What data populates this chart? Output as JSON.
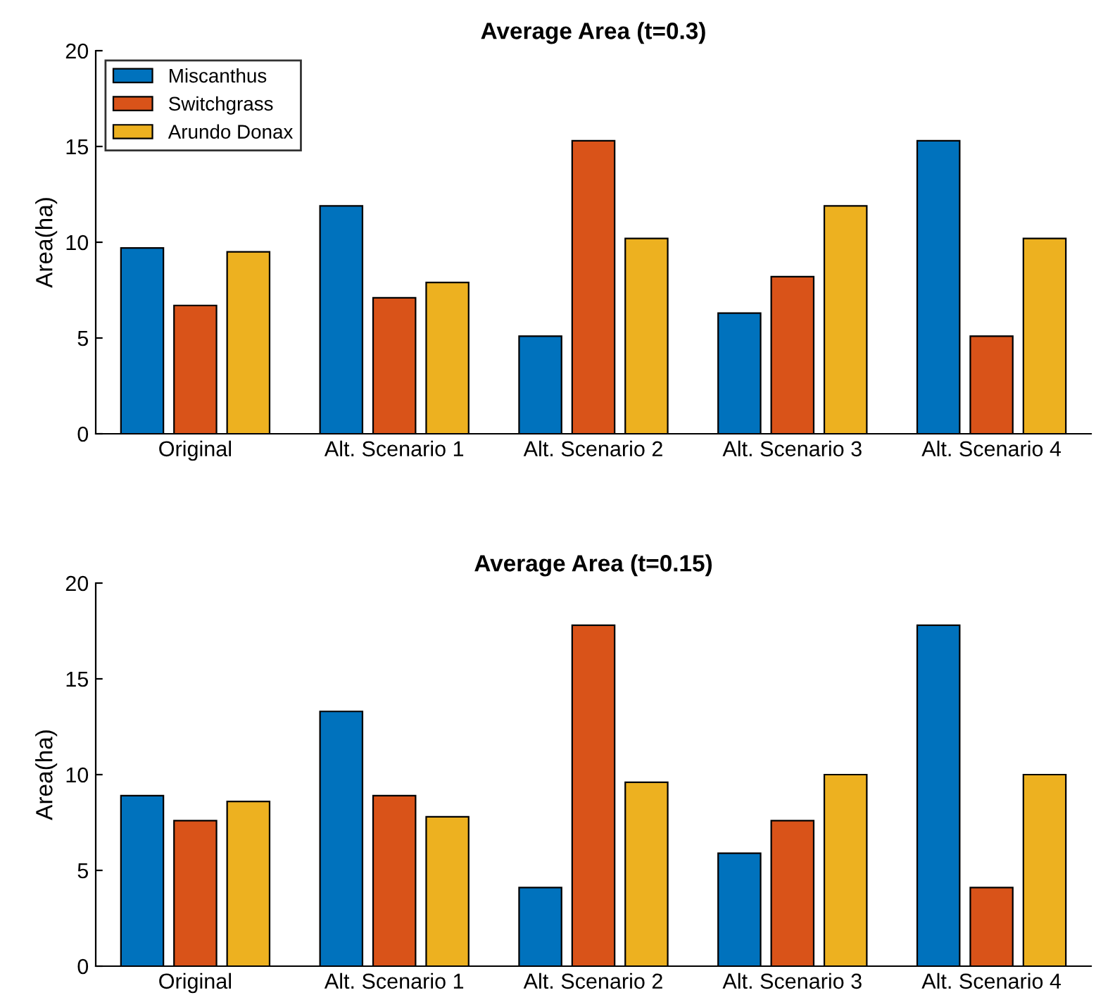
{
  "chart_data": [
    {
      "type": "bar",
      "title": "Average Area (t=0.3)",
      "ylabel": "Area(ha)",
      "categories": [
        "Original",
        "Alt. Scenario 1",
        "Alt. Scenario 2",
        "Alt. Scenario 3",
        "Alt. Scenario 4"
      ],
      "series": [
        {
          "name": "Miscanthus",
          "color": "#0072bd",
          "values": [
            9.7,
            11.9,
            5.1,
            6.3,
            15.3
          ]
        },
        {
          "name": "Switchgrass",
          "color": "#d95319",
          "values": [
            6.7,
            7.1,
            15.3,
            8.2,
            5.1
          ]
        },
        {
          "name": "Arundo Donax",
          "color": "#edb120",
          "values": [
            9.5,
            7.9,
            10.2,
            11.9,
            10.2
          ]
        }
      ],
      "ylim": [
        0,
        20
      ],
      "yticks": [
        0,
        5,
        10,
        15,
        20
      ],
      "grid": false,
      "legend": "top left"
    },
    {
      "type": "bar",
      "title": "Average Area (t=0.15)",
      "ylabel": "Area(ha)",
      "categories": [
        "Original",
        "Alt. Scenario 1",
        "Alt. Scenario 2",
        "Alt. Scenario 3",
        "Alt. Scenario 4"
      ],
      "series": [
        {
          "color": "#0072bd",
          "values": [
            8.9,
            13.3,
            4.1,
            5.9,
            17.8
          ]
        },
        {
          "color": "#d95319",
          "values": [
            7.6,
            8.9,
            17.8,
            7.6,
            4.1
          ]
        },
        {
          "color": "#edb120",
          "values": [
            8.6,
            7.8,
            9.6,
            10.0,
            10.0
          ]
        }
      ],
      "ylim": [
        0,
        20
      ],
      "yticks": [
        0,
        5,
        10,
        15,
        20
      ],
      "grid": false,
      "legend": false
    }
  ]
}
